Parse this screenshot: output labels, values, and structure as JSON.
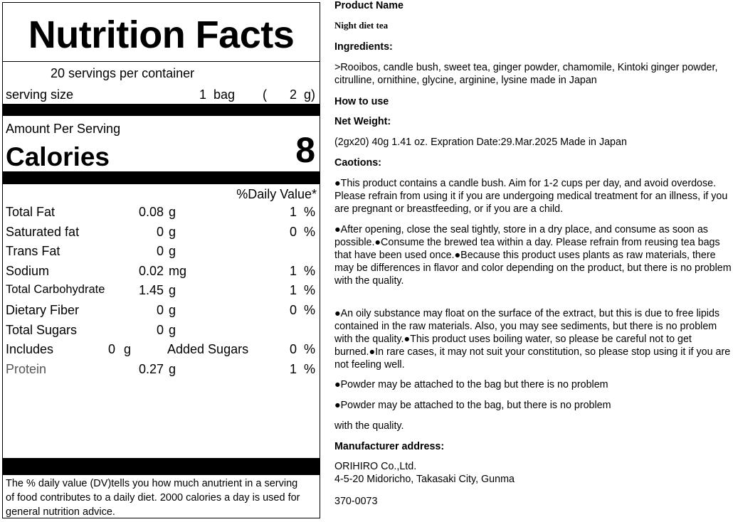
{
  "label": {
    "title": "Nutrition Facts",
    "servings": "20  servings per container",
    "serving_size_label": "serving size",
    "serving_qty": "1  bag",
    "serving_paren_open": "(",
    "serving_grams": "2  g)",
    "amount_per_serving": "Amount Per Serving",
    "calories_label": "Calories",
    "calories_value": "8",
    "daily_value_header": "%Daily Value*",
    "nutrients": [
      {
        "name": "Total Fat",
        "amount": "0.08",
        "unit": "g",
        "dv": "1  %"
      },
      {
        "name": "Saturated fat",
        "amount": "0",
        "unit": "g",
        "dv": "0  %"
      },
      {
        "name": "Trans Fat",
        "amount": "0",
        "unit": "g",
        "dv": ""
      },
      {
        "name": "Sodium",
        "amount": "0.02",
        "unit": "mg",
        "dv": "1  %"
      },
      {
        "name": "Total Carbohydrate",
        "amount": "1.45",
        "unit": "g",
        "dv": "1  %"
      },
      {
        "name": "Dietary Fiber",
        "amount": "0",
        "unit": "g",
        "dv": "0  %"
      },
      {
        "name": "Total Sugars",
        "amount": "0",
        "unit": "g",
        "dv": ""
      },
      {
        "name": "Includes",
        "amount": "0",
        "unit": "g",
        "extra": "Added Sugars",
        "dv": "0  %"
      },
      {
        "name": "Protein",
        "amount": "0.27",
        "unit": "g",
        "dv": "1  %"
      }
    ],
    "footnote": "The % daily value (DV)tells you how much anutrient in a serving of food contributes to a daily diet. 2000 calories a  day is used for general nutrition advice."
  },
  "info": {
    "product_name_h": "Product Name",
    "product_name": "Night diet tea",
    "ingredients_h": "Ingredients:",
    "ingredients": ">Rooibos, candle bush, sweet tea, ginger powder, chamomile, Kintoki ginger powder, citrulline, ornithine, glycine, arginine, lysine made in Japan",
    "how_to_use_h": "How to use",
    "net_weight_h": "Net Weight:",
    "net_weight": "(2gx20) 40g 1.41 oz. Expration Date:29.Mar.2025 Made in Japan",
    "cautions_h": "Caotions:",
    "caution1": "●This product contains a candle bush. Aim for 1-2 cups per day, and avoid overdose. Please refrain from using it if you are undergoing medical treatment for an illness, if you are pregnant or breastfeeding, or if you are a child.",
    "caution2": "●After opening, close the seal tightly, store in a dry place, and consume as soon as possible.●Consume the brewed tea within a day. Please refrain from reusing tea bags that have been used once.●Because this product uses plants as raw materials, there may be differences in flavor and color depending on the product, but there is no problem with the quality.",
    "caution3": "●An oily substance may float on the surface of the extract, but this is due to free lipids contained in the raw materials. Also, you may see sediments, but there is no problem with the quality.●This product uses boiling water, so please be careful not to get burned.●In rare cases, it may not suit your constitution, so please stop using it if you are not feeling well.",
    "powder1": "●Powder may be attached to the bag but there is no problem",
    "powder2": "●Powder may be attached to the bag, but there is no problem",
    "powder3": "with the quality.",
    "manufacturer_h": "Manufacturer address:",
    "manufacturer_name": "ORIHIRO Co.,Ltd.",
    "manufacturer_addr": "4-5-20 Midoricho, Takasaki City, Gunma",
    "postal": "370-0073"
  }
}
